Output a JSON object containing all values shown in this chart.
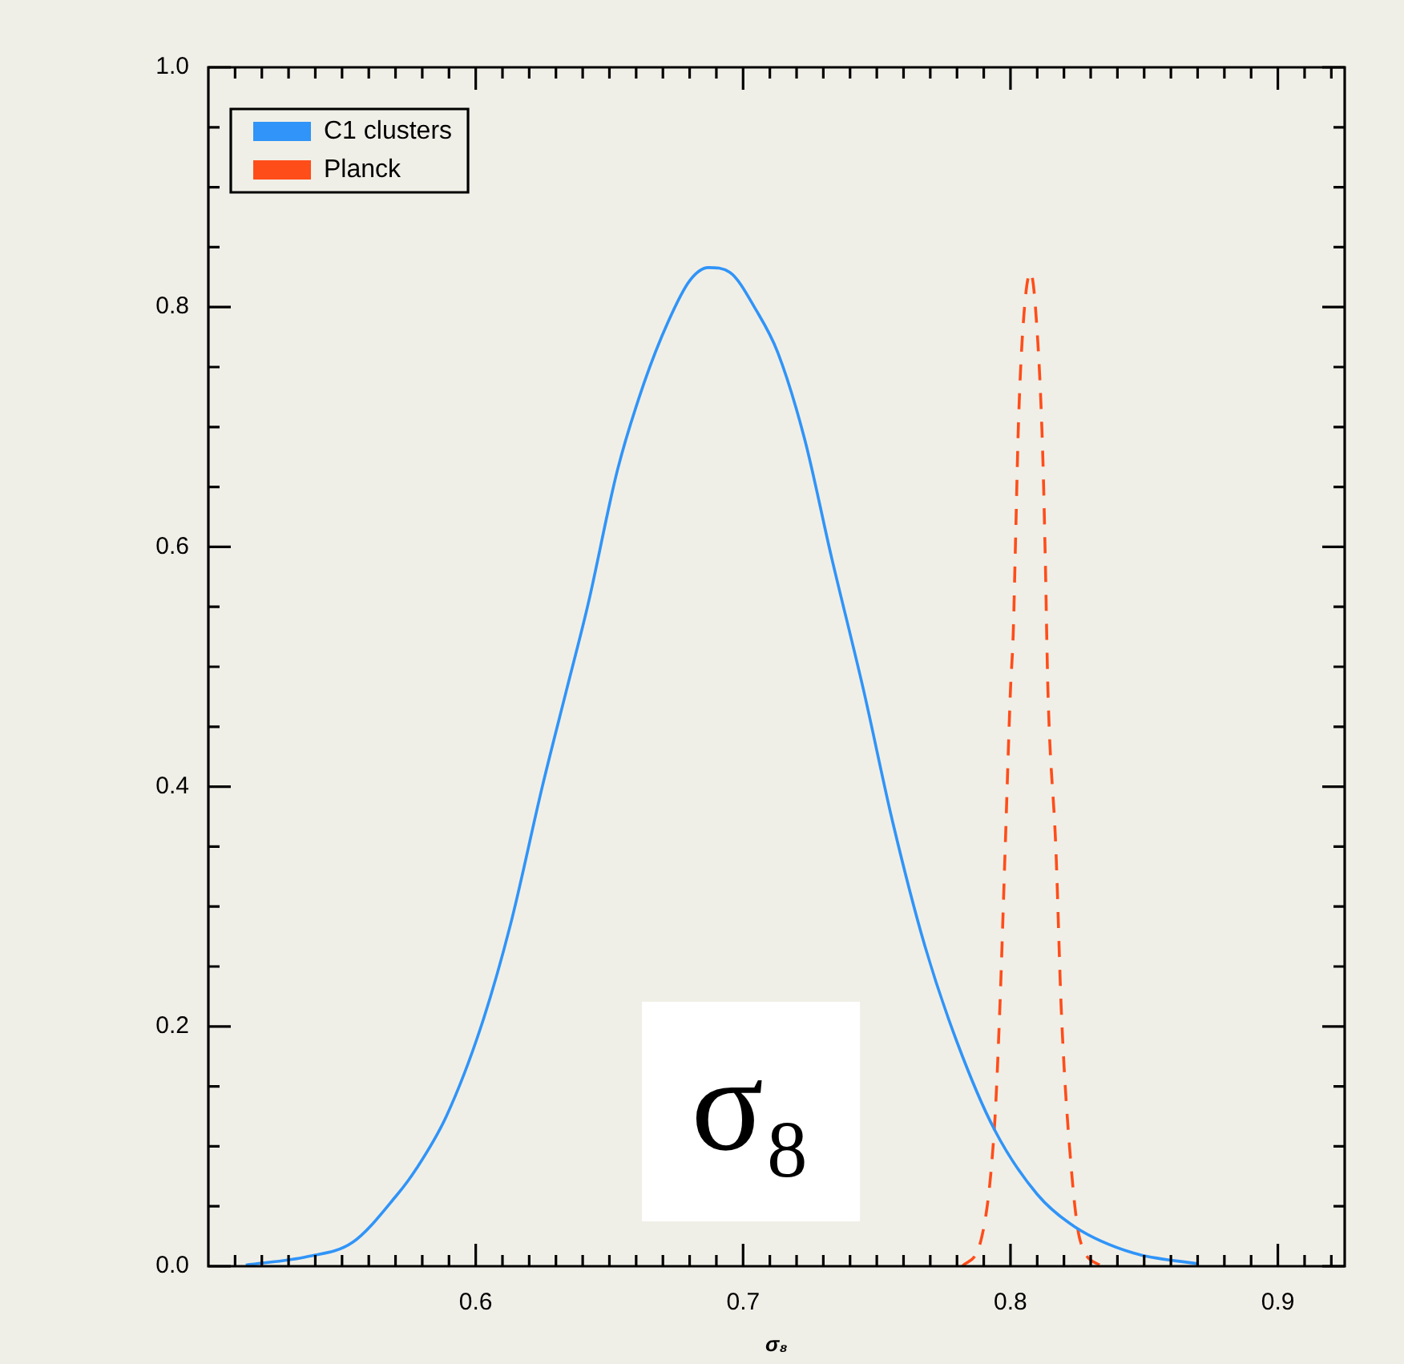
{
  "chart_data": {
    "type": "line",
    "xlabel": "σ₈",
    "annotations": [
      "σ₈"
    ],
    "xlim": [
      0.5,
      0.925
    ],
    "ylim": [
      0,
      1.0
    ],
    "xticks": [
      {
        "value": 0.51,
        "label": null
      },
      {
        "value": 0.52,
        "label": null
      },
      {
        "value": 0.53,
        "label": null
      },
      {
        "value": 0.54,
        "label": null
      },
      {
        "value": 0.55,
        "label": null
      },
      {
        "value": 0.56,
        "label": null
      },
      {
        "value": 0.57,
        "label": null
      },
      {
        "value": 0.58,
        "label": null
      },
      {
        "value": 0.59,
        "label": null
      },
      0.6,
      {
        "value": 0.61,
        "label": null
      },
      {
        "value": 0.62,
        "label": null
      },
      {
        "value": 0.63,
        "label": null
      },
      {
        "value": 0.64,
        "label": null
      },
      {
        "value": 0.65,
        "label": null
      },
      {
        "value": 0.66,
        "label": null
      },
      {
        "value": 0.67,
        "label": null
      },
      {
        "value": 0.68,
        "label": null
      },
      {
        "value": 0.69,
        "label": null
      },
      0.7,
      {
        "value": 0.71,
        "label": null
      },
      {
        "value": 0.72,
        "label": null
      },
      {
        "value": 0.73,
        "label": null
      },
      {
        "value": 0.74,
        "label": null
      },
      {
        "value": 0.75,
        "label": null
      },
      {
        "value": 0.76,
        "label": null
      },
      {
        "value": 0.77,
        "label": null
      },
      {
        "value": 0.78,
        "label": null
      },
      {
        "value": 0.79,
        "label": null
      },
      0.8,
      {
        "value": 0.81,
        "label": null
      },
      {
        "value": 0.82,
        "label": null
      },
      {
        "value": 0.83,
        "label": null
      },
      {
        "value": 0.84,
        "label": null
      },
      {
        "value": 0.85,
        "label": null
      },
      {
        "value": 0.86,
        "label": null
      },
      {
        "value": 0.87,
        "label": null
      },
      {
        "value": 0.88,
        "label": null
      },
      {
        "value": 0.89,
        "label": null
      },
      0.9,
      {
        "value": 0.91,
        "label": null
      },
      {
        "value": 0.92,
        "label": null
      }
    ],
    "yticks": [
      {
        "value": 0,
        "label": "0.0"
      },
      {
        "value": 0.05,
        "label": null
      },
      {
        "value": 0.1,
        "label": null
      },
      {
        "value": 0.15,
        "label": null
      },
      0.2,
      {
        "value": 0.25,
        "label": null
      },
      {
        "value": 0.3,
        "label": null
      },
      {
        "value": 0.35,
        "label": null
      },
      0.4,
      {
        "value": 0.45,
        "label": null
      },
      {
        "value": 0.5,
        "label": null
      },
      {
        "value": 0.55,
        "label": null
      },
      0.6,
      {
        "value": 0.65,
        "label": null
      },
      {
        "value": 0.7,
        "label": null
      },
      {
        "value": 0.75,
        "label": null
      },
      0.8,
      {
        "value": 0.85,
        "label": null
      },
      {
        "value": 0.9,
        "label": null
      },
      {
        "value": 0.95,
        "label": null
      },
      {
        "value": 1.0,
        "label": "1.0"
      }
    ],
    "legend": "top left",
    "marker": "none",
    "series": [
      {
        "name": "C1 clusters",
        "color": "#3094f8",
        "line_style": "solid",
        "x": [
          0.514,
          0.537,
          0.554,
          0.57,
          0.578,
          0.589,
          0.602,
          0.613,
          0.625,
          0.634,
          0.642,
          0.653,
          0.663,
          0.672,
          0.68,
          0.687,
          0.695,
          0.705,
          0.713,
          0.723,
          0.733,
          0.745,
          0.756,
          0.768,
          0.78,
          0.794,
          0.81,
          0.824,
          0.846,
          0.87
        ],
        "values": [
          0.001,
          0.008,
          0.02,
          0.058,
          0.082,
          0.125,
          0.2,
          0.285,
          0.401,
          0.481,
          0.552,
          0.664,
          0.737,
          0.788,
          0.822,
          0.833,
          0.829,
          0.797,
          0.762,
          0.69,
          0.592,
          0.481,
          0.37,
          0.267,
          0.187,
          0.114,
          0.06,
          0.033,
          0.011,
          0.002
        ]
      },
      {
        "name": "Planck",
        "color": "#ff4d1a",
        "line_style": "dashed",
        "x": [
          0.782,
          0.789,
          0.794,
          0.796,
          0.798,
          0.8,
          0.801,
          0.802,
          0.803,
          0.805,
          0.8075,
          0.81,
          0.812,
          0.813,
          0.814,
          0.817,
          0.819,
          0.822,
          0.826,
          0.834
        ],
        "values": [
          0,
          0.022,
          0.116,
          0.214,
          0.347,
          0.481,
          0.526,
          0.615,
          0.704,
          0.793,
          0.829,
          0.779,
          0.682,
          0.592,
          0.481,
          0.347,
          0.214,
          0.102,
          0.022,
          0
        ]
      }
    ]
  }
}
